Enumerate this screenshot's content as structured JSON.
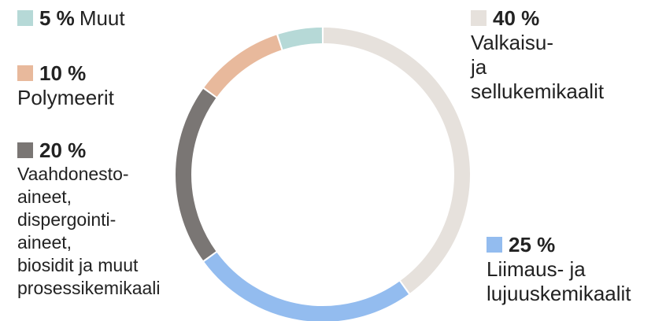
{
  "chart_data": {
    "type": "pie",
    "categories": [
      "Valkaisu-\nja\nsellukemikaalit",
      "Liimaus- ja\nlujuuskemikaalit",
      "Vaahdonesto-\naineet,\ndispergointi-\naineet,\nbiosidit ja muut\nprosessikemikaali",
      "Polymeerit",
      "Muut"
    ],
    "values": [
      40,
      25,
      20,
      10,
      5
    ],
    "value_labels": [
      "40 %",
      "25 %",
      "20 %",
      "10 %",
      "5 %"
    ],
    "colors": [
      "#e6e1dc",
      "#93bcef",
      "#7a7674",
      "#e8b99c",
      "#b6d9d7"
    ]
  }
}
